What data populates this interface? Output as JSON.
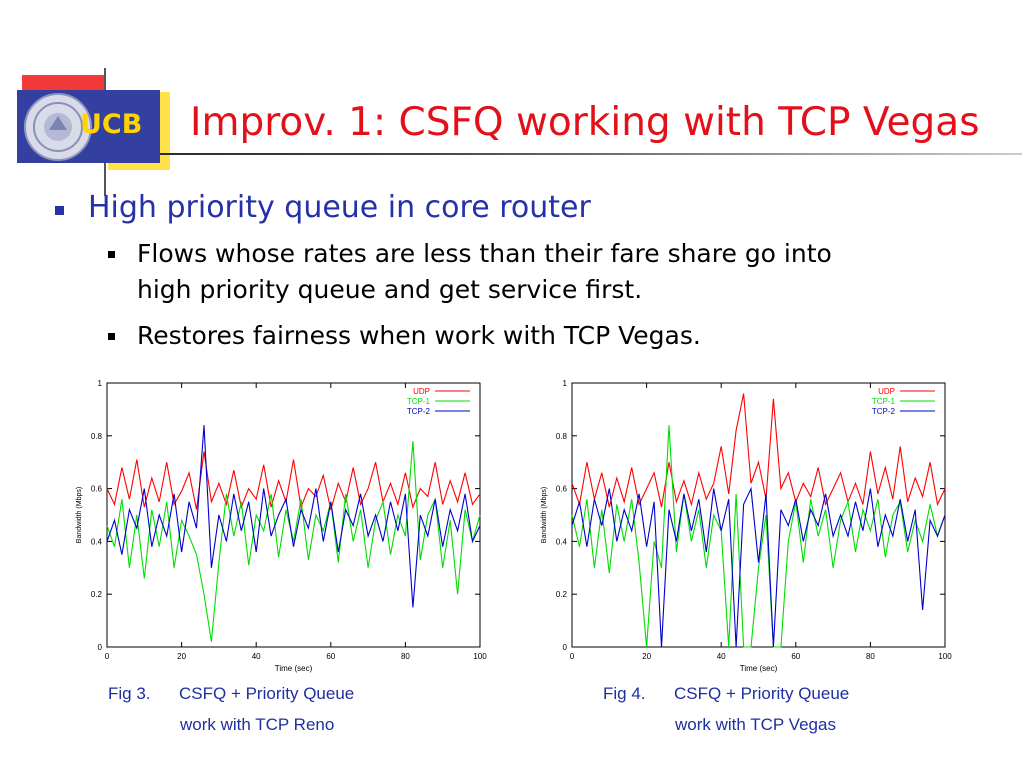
{
  "slide": {
    "logo_text": "UCB",
    "title": "Improv. 1: CSFQ working with TCP Vegas",
    "bullets": [
      {
        "text": "High priority queue in core router",
        "sub": [
          {
            "lines": [
              "Flows whose rates are less than their fare share go into",
              "high priority queue and get service first."
            ]
          },
          {
            "lines": [
              "Restores fairness when work with TCP Vegas."
            ]
          }
        ]
      }
    ],
    "captions": [
      {
        "num": "Fig 3.",
        "line1": "CSFQ + Priority Queue",
        "line2": "work with TCP Reno"
      },
      {
        "num": "Fig 4.",
        "line1": "CSFQ + Priority Queue",
        "line2": "work with TCP Vegas"
      }
    ]
  },
  "colors": {
    "title": "#e3101a",
    "bullet_main": "#2531a8",
    "bullet_square": "#2531a8",
    "caption": "#1f2fa0",
    "logo_bg": "#3340a0",
    "logo_text": "#ffd400",
    "accent_red": "#f23a3a",
    "accent_yellow": "#ffe24a",
    "series_udp": "#ff0000",
    "series_tcp1": "#00dd00",
    "series_tcp2": "#0000cc"
  },
  "chart_data": [
    {
      "type": "line",
      "title": "",
      "xlabel": "Time (sec)",
      "ylabel": "Bandwidth (Mbps)",
      "xlim": [
        0,
        100
      ],
      "ylim": [
        0,
        1
      ],
      "xticks": [
        0,
        20,
        40,
        60,
        80,
        100
      ],
      "yticks": [
        0,
        0.2,
        0.4,
        0.6,
        0.8,
        1
      ],
      "ytick_labels": [
        "0",
        "0.2",
        "0.4",
        "0.6",
        "0.8",
        "1"
      ],
      "legend": "top-right",
      "x": [
        0,
        2,
        4,
        6,
        8,
        10,
        12,
        14,
        16,
        18,
        20,
        22,
        24,
        26,
        28,
        30,
        32,
        34,
        36,
        38,
        40,
        42,
        44,
        46,
        48,
        50,
        52,
        54,
        56,
        58,
        60,
        62,
        64,
        66,
        68,
        70,
        72,
        74,
        76,
        78,
        80,
        82,
        84,
        86,
        88,
        90,
        92,
        94,
        96,
        98,
        100
      ],
      "series": [
        {
          "name": "UDP",
          "values": [
            0.6,
            0.54,
            0.68,
            0.56,
            0.71,
            0.53,
            0.64,
            0.55,
            0.7,
            0.54,
            0.59,
            0.66,
            0.52,
            0.74,
            0.55,
            0.62,
            0.54,
            0.67,
            0.53,
            0.6,
            0.56,
            0.69,
            0.53,
            0.63,
            0.55,
            0.71,
            0.53,
            0.6,
            0.57,
            0.65,
            0.52,
            0.62,
            0.55,
            0.68,
            0.54,
            0.6,
            0.7,
            0.55,
            0.62,
            0.54,
            0.66,
            0.53,
            0.6,
            0.57,
            0.7,
            0.54,
            0.63,
            0.55,
            0.66,
            0.54,
            0.58
          ]
        },
        {
          "name": "TCP-1",
          "values": [
            0.46,
            0.38,
            0.56,
            0.3,
            0.5,
            0.26,
            0.52,
            0.38,
            0.55,
            0.3,
            0.48,
            0.42,
            0.35,
            0.2,
            0.02,
            0.32,
            0.58,
            0.42,
            0.55,
            0.31,
            0.5,
            0.44,
            0.58,
            0.34,
            0.52,
            0.4,
            0.56,
            0.33,
            0.5,
            0.44,
            0.55,
            0.32,
            0.58,
            0.4,
            0.52,
            0.3,
            0.48,
            0.55,
            0.35,
            0.5,
            0.42,
            0.78,
            0.33,
            0.5,
            0.56,
            0.3,
            0.48,
            0.2,
            0.52,
            0.4,
            0.5
          ]
        },
        {
          "name": "TCP-2",
          "values": [
            0.4,
            0.48,
            0.35,
            0.52,
            0.45,
            0.6,
            0.38,
            0.5,
            0.42,
            0.58,
            0.36,
            0.55,
            0.45,
            0.84,
            0.3,
            0.5,
            0.4,
            0.58,
            0.44,
            0.55,
            0.36,
            0.6,
            0.42,
            0.5,
            0.56,
            0.38,
            0.52,
            0.45,
            0.6,
            0.4,
            0.55,
            0.36,
            0.52,
            0.46,
            0.58,
            0.42,
            0.5,
            0.4,
            0.55,
            0.44,
            0.58,
            0.15,
            0.5,
            0.42,
            0.56,
            0.38,
            0.52,
            0.44,
            0.58,
            0.4,
            0.46
          ]
        }
      ]
    },
    {
      "type": "line",
      "title": "",
      "xlabel": "Time (sec)",
      "ylabel": "Bandwidth (Mbps)",
      "xlim": [
        0,
        100
      ],
      "ylim": [
        0,
        1
      ],
      "xticks": [
        0,
        20,
        40,
        60,
        80,
        100
      ],
      "yticks": [
        0,
        0.2,
        0.4,
        0.6,
        0.8,
        1
      ],
      "ytick_labels": [
        "0",
        "0.2",
        "0.4",
        "0.6",
        "0.8",
        "1"
      ],
      "legend": "top-right",
      "x": [
        0,
        2,
        4,
        6,
        8,
        10,
        12,
        14,
        16,
        18,
        20,
        22,
        24,
        26,
        28,
        30,
        32,
        34,
        36,
        38,
        40,
        42,
        44,
        46,
        48,
        50,
        52,
        54,
        56,
        58,
        60,
        62,
        64,
        66,
        68,
        70,
        72,
        74,
        76,
        78,
        80,
        82,
        84,
        86,
        88,
        90,
        92,
        94,
        96,
        98,
        100
      ],
      "series": [
        {
          "name": "UDP",
          "values": [
            0.62,
            0.54,
            0.7,
            0.56,
            0.66,
            0.53,
            0.64,
            0.55,
            0.68,
            0.54,
            0.6,
            0.66,
            0.53,
            0.7,
            0.55,
            0.63,
            0.54,
            0.66,
            0.56,
            0.62,
            0.76,
            0.58,
            0.82,
            0.96,
            0.62,
            0.7,
            0.56,
            0.94,
            0.6,
            0.66,
            0.55,
            0.62,
            0.57,
            0.68,
            0.54,
            0.6,
            0.66,
            0.55,
            0.62,
            0.54,
            0.74,
            0.58,
            0.68,
            0.56,
            0.76,
            0.55,
            0.64,
            0.57,
            0.7,
            0.54,
            0.6
          ]
        },
        {
          "name": "TCP-1",
          "values": [
            0.5,
            0.38,
            0.56,
            0.3,
            0.52,
            0.28,
            0.54,
            0.4,
            0.56,
            0.32,
            0.0,
            0.4,
            0.3,
            0.84,
            0.36,
            0.58,
            0.4,
            0.52,
            0.3,
            0.5,
            0.44,
            0.0,
            0.58,
            0.0,
            0.0,
            0.3,
            0.5,
            0.0,
            0.0,
            0.4,
            0.55,
            0.32,
            0.56,
            0.42,
            0.52,
            0.3,
            0.48,
            0.55,
            0.36,
            0.52,
            0.44,
            0.56,
            0.34,
            0.5,
            0.55,
            0.36,
            0.48,
            0.4,
            0.54,
            0.42,
            0.5
          ]
        },
        {
          "name": "TCP-2",
          "values": [
            0.46,
            0.55,
            0.38,
            0.56,
            0.46,
            0.6,
            0.4,
            0.52,
            0.44,
            0.58,
            0.38,
            0.55,
            0.0,
            0.52,
            0.4,
            0.58,
            0.44,
            0.56,
            0.36,
            0.6,
            0.44,
            0.56,
            0.0,
            0.54,
            0.6,
            0.32,
            0.58,
            0.0,
            0.52,
            0.46,
            0.56,
            0.4,
            0.52,
            0.46,
            0.58,
            0.42,
            0.5,
            0.42,
            0.55,
            0.44,
            0.6,
            0.38,
            0.5,
            0.42,
            0.56,
            0.4,
            0.52,
            0.14,
            0.48,
            0.42,
            0.5
          ]
        }
      ]
    }
  ]
}
